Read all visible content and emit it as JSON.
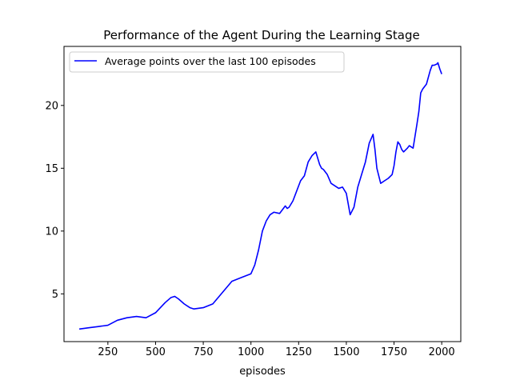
{
  "chart_data": {
    "type": "line",
    "title": "Performance of the Agent During the Learning Stage",
    "xlabel": "episodes",
    "ylabel": "",
    "xlim": [
      20,
      2100
    ],
    "ylim": [
      1.2,
      24.7
    ],
    "xticks": [
      250,
      500,
      750,
      1000,
      1250,
      1500,
      1750,
      2000
    ],
    "yticks": [
      5,
      10,
      15,
      20
    ],
    "grid": false,
    "legend_position": "top-left",
    "series": [
      {
        "name": "Average points over the last 100 episodes",
        "color": "#0000ff",
        "x": [
          100,
          150,
          200,
          250,
          300,
          350,
          400,
          450,
          500,
          550,
          580,
          600,
          620,
          650,
          680,
          700,
          750,
          800,
          850,
          900,
          950,
          1000,
          1020,
          1040,
          1060,
          1080,
          1100,
          1120,
          1150,
          1180,
          1190,
          1200,
          1220,
          1240,
          1260,
          1280,
          1300,
          1320,
          1340,
          1360,
          1370,
          1380,
          1400,
          1420,
          1440,
          1460,
          1480,
          1500,
          1520,
          1540,
          1560,
          1580,
          1600,
          1620,
          1640,
          1650,
          1660,
          1680,
          1700,
          1720,
          1740,
          1750,
          1760,
          1770,
          1780,
          1790,
          1800,
          1820,
          1830,
          1850,
          1870,
          1880,
          1890,
          1900,
          1920,
          1940,
          1950,
          1960,
          1975,
          1980,
          1990,
          2000
        ],
        "y": [
          2.2,
          2.3,
          2.4,
          2.5,
          2.9,
          3.1,
          3.2,
          3.1,
          3.5,
          4.3,
          4.7,
          4.8,
          4.6,
          4.2,
          3.9,
          3.8,
          3.9,
          4.2,
          5.1,
          6.0,
          6.3,
          6.6,
          7.3,
          8.5,
          10.0,
          10.8,
          11.3,
          11.5,
          11.4,
          12.0,
          11.8,
          11.9,
          12.4,
          13.2,
          14.0,
          14.4,
          15.5,
          16.0,
          16.3,
          15.3,
          15.0,
          14.9,
          14.5,
          13.8,
          13.6,
          13.4,
          13.5,
          13.0,
          11.3,
          11.9,
          13.5,
          14.5,
          15.5,
          17.0,
          17.7,
          16.5,
          15.0,
          13.8,
          14.0,
          14.2,
          14.5,
          15.2,
          16.3,
          17.1,
          16.9,
          16.5,
          16.3,
          16.6,
          16.8,
          16.6,
          18.5,
          19.5,
          21.0,
          21.3,
          21.7,
          22.8,
          23.2,
          23.2,
          23.3,
          23.4,
          22.9,
          22.5
        ]
      }
    ]
  }
}
